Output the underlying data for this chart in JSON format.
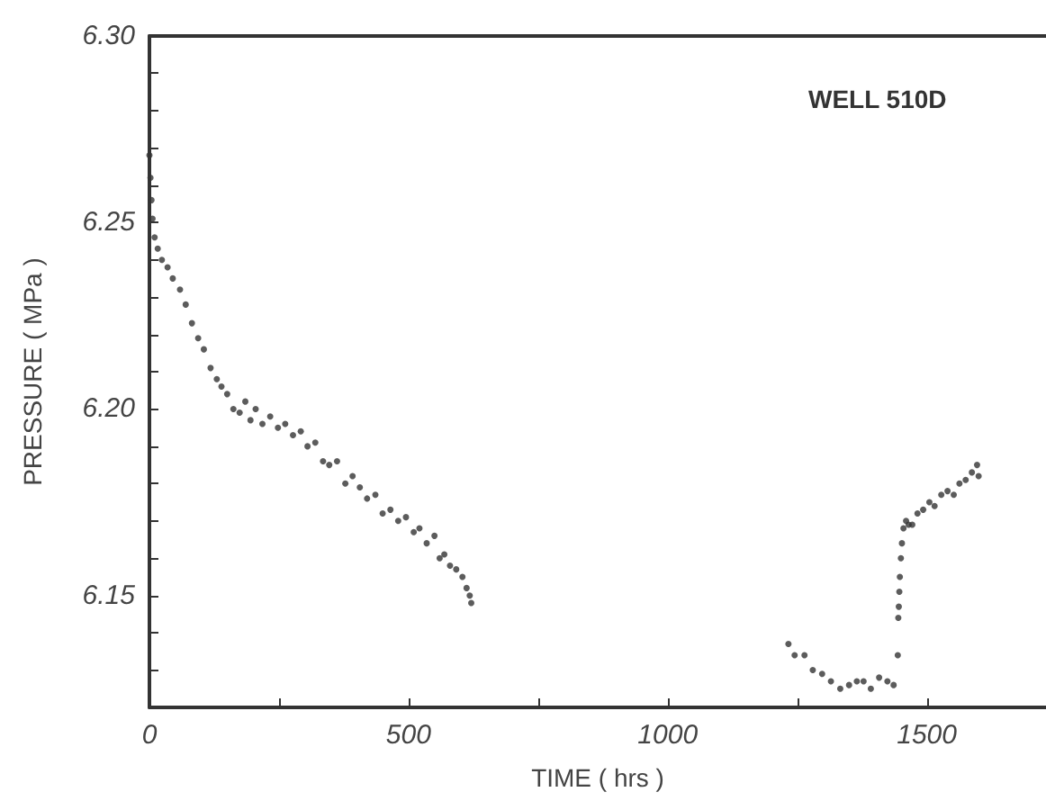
{
  "chart_data": {
    "type": "scatter",
    "xlabel": "TIME ( hrs )",
    "ylabel": "PRESSURE ( MPa )",
    "annotations": [
      "WELL 510D"
    ],
    "x": [
      0,
      2,
      4,
      6,
      10,
      16,
      24,
      35,
      45,
      59,
      70,
      82,
      94,
      105,
      118,
      130,
      139,
      150,
      162,
      174,
      185,
      195,
      205,
      218,
      233,
      248,
      262,
      277,
      292,
      305,
      320,
      335,
      347,
      362,
      378,
      392,
      406,
      420,
      436,
      450,
      465,
      480,
      495,
      510,
      521,
      535,
      550,
      560,
      569,
      580,
      592,
      604,
      612,
      618,
      621,
      1233,
      1245,
      1264,
      1280,
      1298,
      1315,
      1333,
      1350,
      1365,
      1378,
      1392,
      1408,
      1424,
      1436,
      1444,
      1445,
      1446,
      1447,
      1448,
      1450,
      1452,
      1455,
      1460,
      1465,
      1472,
      1482,
      1493,
      1505,
      1515,
      1528,
      1540,
      1552,
      1563,
      1575,
      1587,
      1597,
      1600
    ],
    "values": [
      6.268,
      6.262,
      6.256,
      6.251,
      6.246,
      6.243,
      6.24,
      6.238,
      6.235,
      6.232,
      6.228,
      6.223,
      6.219,
      6.216,
      6.211,
      6.208,
      6.206,
      6.204,
      6.2,
      6.199,
      6.202,
      6.197,
      6.2,
      6.196,
      6.198,
      6.195,
      6.196,
      6.193,
      6.194,
      6.19,
      6.191,
      6.186,
      6.185,
      6.186,
      6.18,
      6.182,
      6.179,
      6.176,
      6.177,
      6.172,
      6.173,
      6.17,
      6.171,
      6.167,
      6.168,
      6.164,
      6.166,
      6.16,
      6.161,
      6.158,
      6.157,
      6.155,
      6.152,
      6.15,
      6.148,
      6.137,
      6.134,
      6.134,
      6.13,
      6.129,
      6.127,
      6.125,
      6.126,
      6.127,
      6.127,
      6.125,
      6.128,
      6.127,
      6.126,
      6.134,
      6.144,
      6.147,
      6.151,
      6.155,
      6.16,
      6.164,
      6.168,
      6.17,
      6.169,
      6.169,
      6.172,
      6.173,
      6.175,
      6.174,
      6.177,
      6.178,
      6.177,
      6.18,
      6.181,
      6.183,
      6.185,
      6.182
    ],
    "color": "#333333",
    "marker": "circle",
    "xlim": [
      0,
      1730
    ],
    "ylim": [
      6.12,
      6.3
    ],
    "xticks": [
      0,
      {
        "value": 250,
        "label": null
      },
      500,
      {
        "value": 750,
        "label": null
      },
      1000,
      {
        "value": 1250,
        "label": null
      },
      1500
    ],
    "yticks": [
      {
        "value": 6.13,
        "label": null
      },
      {
        "value": 6.14,
        "label": null
      },
      {
        "value": 6.15,
        "label": "6.15"
      },
      {
        "value": 6.16,
        "label": null
      },
      {
        "value": 6.17,
        "label": null
      },
      {
        "value": 6.18,
        "label": null
      },
      {
        "value": 6.19,
        "label": null
      },
      {
        "value": 6.2,
        "label": "6.20"
      },
      {
        "value": 6.21,
        "label": null
      },
      {
        "value": 6.22,
        "label": null
      },
      {
        "value": 6.23,
        "label": null
      },
      {
        "value": 6.24,
        "label": null
      },
      {
        "value": 6.25,
        "label": "6.25"
      },
      {
        "value": 6.26,
        "label": null
      },
      {
        "value": 6.27,
        "label": null
      },
      {
        "value": 6.28,
        "label": null
      },
      {
        "value": 6.29,
        "label": null
      },
      {
        "value": 6.3,
        "label": "6.30"
      }
    ]
  }
}
